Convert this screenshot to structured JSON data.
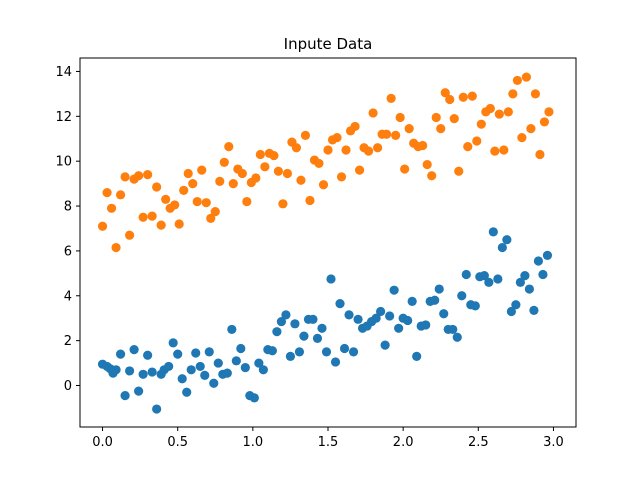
{
  "chart_data": {
    "type": "scatter",
    "title": "Inpute Data",
    "xlabel": "",
    "ylabel": "",
    "xlim": [
      -0.15,
      3.15
    ],
    "ylim": [
      -1.85,
      14.6
    ],
    "xticks": [
      "0.0",
      "0.5",
      "1.0",
      "1.5",
      "2.0",
      "2.5",
      "3.0"
    ],
    "yticks": [
      "0",
      "2",
      "4",
      "6",
      "8",
      "10",
      "12",
      "14"
    ],
    "grid": false,
    "legend": "none",
    "series": [
      {
        "color": "#1f77b4",
        "points": [
          [
            0.0,
            0.95
          ],
          [
            0.03,
            0.85
          ],
          [
            0.05,
            0.75
          ],
          [
            0.07,
            0.55
          ],
          [
            0.09,
            0.7
          ],
          [
            0.12,
            1.4
          ],
          [
            0.15,
            -0.45
          ],
          [
            0.18,
            0.65
          ],
          [
            0.21,
            1.6
          ],
          [
            0.24,
            -0.25
          ],
          [
            0.27,
            0.5
          ],
          [
            0.3,
            1.35
          ],
          [
            0.33,
            0.6
          ],
          [
            0.36,
            -1.05
          ],
          [
            0.39,
            0.5
          ],
          [
            0.41,
            0.7
          ],
          [
            0.44,
            0.85
          ],
          [
            0.47,
            1.9
          ],
          [
            0.5,
            1.4
          ],
          [
            0.53,
            0.3
          ],
          [
            0.56,
            -0.3
          ],
          [
            0.59,
            0.7
          ],
          [
            0.62,
            1.45
          ],
          [
            0.65,
            0.85
          ],
          [
            0.68,
            0.45
          ],
          [
            0.71,
            1.5
          ],
          [
            0.74,
            0.1
          ],
          [
            0.77,
            1.0
          ],
          [
            0.8,
            0.5
          ],
          [
            0.83,
            0.55
          ],
          [
            0.86,
            2.5
          ],
          [
            0.89,
            1.1
          ],
          [
            0.92,
            1.65
          ],
          [
            0.95,
            0.8
          ],
          [
            0.98,
            -0.45
          ],
          [
            1.01,
            -0.55
          ],
          [
            1.04,
            1.0
          ],
          [
            1.07,
            0.7
          ],
          [
            1.1,
            1.6
          ],
          [
            1.13,
            1.55
          ],
          [
            1.16,
            2.4
          ],
          [
            1.19,
            2.85
          ],
          [
            1.22,
            3.15
          ],
          [
            1.25,
            1.3
          ],
          [
            1.28,
            2.75
          ],
          [
            1.31,
            1.5
          ],
          [
            1.34,
            2.2
          ],
          [
            1.37,
            2.95
          ],
          [
            1.4,
            2.95
          ],
          [
            1.43,
            2.1
          ],
          [
            1.46,
            2.55
          ],
          [
            1.49,
            1.5
          ],
          [
            1.52,
            4.75
          ],
          [
            1.55,
            1.05
          ],
          [
            1.58,
            3.65
          ],
          [
            1.61,
            1.65
          ],
          [
            1.64,
            3.15
          ],
          [
            1.67,
            1.5
          ],
          [
            1.7,
            2.95
          ],
          [
            1.73,
            2.55
          ],
          [
            1.76,
            2.65
          ],
          [
            1.79,
            2.85
          ],
          [
            1.82,
            3.0
          ],
          [
            1.85,
            3.3
          ],
          [
            1.88,
            1.8
          ],
          [
            1.91,
            3.1
          ],
          [
            1.94,
            4.25
          ],
          [
            1.97,
            2.55
          ],
          [
            2.0,
            3.0
          ],
          [
            2.03,
            2.9
          ],
          [
            2.06,
            3.75
          ],
          [
            2.09,
            1.3
          ],
          [
            2.12,
            2.65
          ],
          [
            2.15,
            2.7
          ],
          [
            2.18,
            3.75
          ],
          [
            2.21,
            3.8
          ],
          [
            2.24,
            4.3
          ],
          [
            2.27,
            3.2
          ],
          [
            2.3,
            2.5
          ],
          [
            2.33,
            2.5
          ],
          [
            2.36,
            2.15
          ],
          [
            2.39,
            4.0
          ],
          [
            2.42,
            4.95
          ],
          [
            2.45,
            3.6
          ],
          [
            2.48,
            3.55
          ],
          [
            2.51,
            4.85
          ],
          [
            2.54,
            4.9
          ],
          [
            2.57,
            4.6
          ],
          [
            2.6,
            6.85
          ],
          [
            2.63,
            4.75
          ],
          [
            2.66,
            6.15
          ],
          [
            2.69,
            6.5
          ],
          [
            2.72,
            3.3
          ],
          [
            2.75,
            3.6
          ],
          [
            2.78,
            4.6
          ],
          [
            2.81,
            4.9
          ],
          [
            2.84,
            4.3
          ],
          [
            2.87,
            3.35
          ],
          [
            2.9,
            5.55
          ],
          [
            2.93,
            4.95
          ],
          [
            2.96,
            5.8
          ]
        ]
      },
      {
        "color": "#ff7f0e",
        "points": [
          [
            0.0,
            7.1
          ],
          [
            0.03,
            8.6
          ],
          [
            0.06,
            7.9
          ],
          [
            0.09,
            6.15
          ],
          [
            0.12,
            8.5
          ],
          [
            0.15,
            9.3
          ],
          [
            0.18,
            6.7
          ],
          [
            0.21,
            9.2
          ],
          [
            0.24,
            9.35
          ],
          [
            0.27,
            7.5
          ],
          [
            0.3,
            9.4
          ],
          [
            0.33,
            7.55
          ],
          [
            0.36,
            8.85
          ],
          [
            0.39,
            7.15
          ],
          [
            0.42,
            8.3
          ],
          [
            0.45,
            7.9
          ],
          [
            0.48,
            8.05
          ],
          [
            0.51,
            7.2
          ],
          [
            0.54,
            8.7
          ],
          [
            0.57,
            9.45
          ],
          [
            0.6,
            9.0
          ],
          [
            0.63,
            8.2
          ],
          [
            0.66,
            9.6
          ],
          [
            0.69,
            8.15
          ],
          [
            0.72,
            7.45
          ],
          [
            0.75,
            7.75
          ],
          [
            0.78,
            9.1
          ],
          [
            0.81,
            9.95
          ],
          [
            0.84,
            10.65
          ],
          [
            0.87,
            9.0
          ],
          [
            0.9,
            9.65
          ],
          [
            0.93,
            9.45
          ],
          [
            0.96,
            8.2
          ],
          [
            0.99,
            9.05
          ],
          [
            1.02,
            9.25
          ],
          [
            1.05,
            10.3
          ],
          [
            1.08,
            9.75
          ],
          [
            1.11,
            10.35
          ],
          [
            1.14,
            10.25
          ],
          [
            1.17,
            9.55
          ],
          [
            1.2,
            8.1
          ],
          [
            1.23,
            9.45
          ],
          [
            1.26,
            10.85
          ],
          [
            1.29,
            10.6
          ],
          [
            1.32,
            9.15
          ],
          [
            1.35,
            11.15
          ],
          [
            1.38,
            8.25
          ],
          [
            1.41,
            10.05
          ],
          [
            1.44,
            9.9
          ],
          [
            1.47,
            8.95
          ],
          [
            1.5,
            10.5
          ],
          [
            1.53,
            10.95
          ],
          [
            1.56,
            11.05
          ],
          [
            1.59,
            9.3
          ],
          [
            1.62,
            10.5
          ],
          [
            1.65,
            11.35
          ],
          [
            1.68,
            11.55
          ],
          [
            1.71,
            9.6
          ],
          [
            1.74,
            10.6
          ],
          [
            1.77,
            10.45
          ],
          [
            1.8,
            12.15
          ],
          [
            1.83,
            10.6
          ],
          [
            1.86,
            11.2
          ],
          [
            1.89,
            11.2
          ],
          [
            1.92,
            12.8
          ],
          [
            1.95,
            11.15
          ],
          [
            1.98,
            11.95
          ],
          [
            2.01,
            9.65
          ],
          [
            2.04,
            11.45
          ],
          [
            2.07,
            10.8
          ],
          [
            2.1,
            10.65
          ],
          [
            2.13,
            10.7
          ],
          [
            2.16,
            9.85
          ],
          [
            2.19,
            9.35
          ],
          [
            2.22,
            11.95
          ],
          [
            2.25,
            11.45
          ],
          [
            2.28,
            13.05
          ],
          [
            2.31,
            12.75
          ],
          [
            2.34,
            11.9
          ],
          [
            2.37,
            9.55
          ],
          [
            2.4,
            12.85
          ],
          [
            2.43,
            10.65
          ],
          [
            2.46,
            12.9
          ],
          [
            2.49,
            10.9
          ],
          [
            2.52,
            11.65
          ],
          [
            2.55,
            12.2
          ],
          [
            2.58,
            12.35
          ],
          [
            2.61,
            10.45
          ],
          [
            2.64,
            12.1
          ],
          [
            2.67,
            10.5
          ],
          [
            2.7,
            12.2
          ],
          [
            2.73,
            13.0
          ],
          [
            2.76,
            13.6
          ],
          [
            2.79,
            11.05
          ],
          [
            2.82,
            13.75
          ],
          [
            2.85,
            11.45
          ],
          [
            2.88,
            13.0
          ],
          [
            2.91,
            10.3
          ],
          [
            2.94,
            11.75
          ],
          [
            2.97,
            12.2
          ]
        ]
      }
    ]
  }
}
